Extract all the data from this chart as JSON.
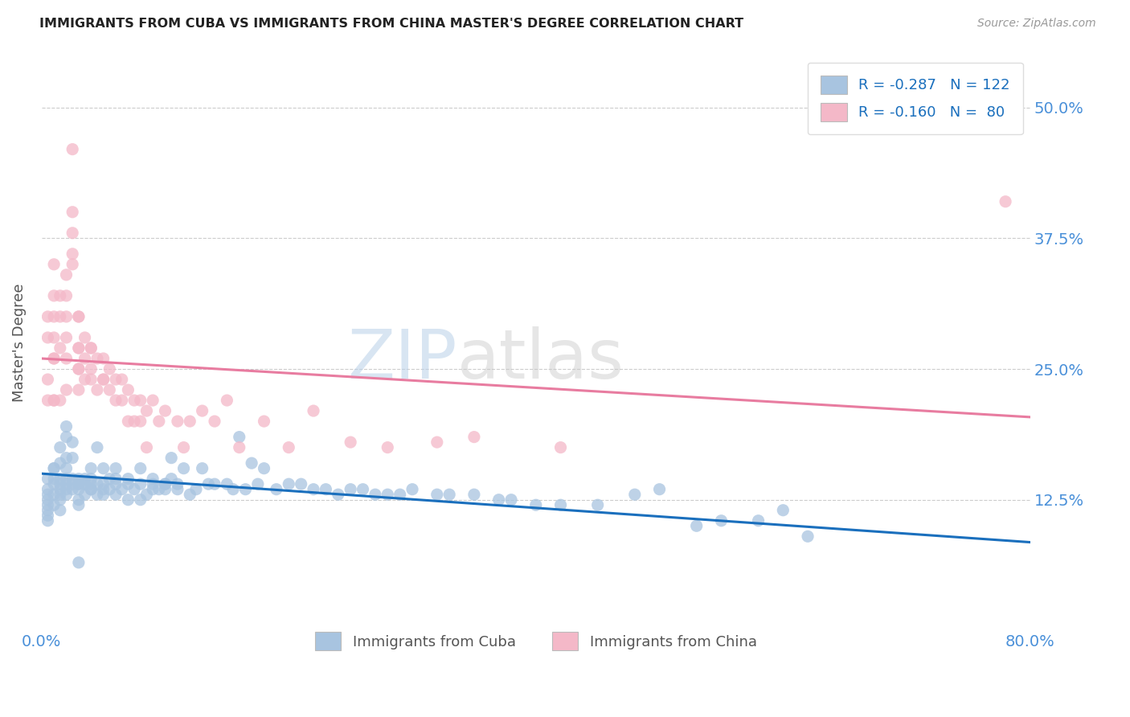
{
  "title": "IMMIGRANTS FROM CUBA VS IMMIGRANTS FROM CHINA MASTER'S DEGREE CORRELATION CHART",
  "source": "Source: ZipAtlas.com",
  "ylabel": "Master's Degree",
  "ytick_labels": [
    "12.5%",
    "25.0%",
    "37.5%",
    "50.0%"
  ],
  "ytick_values": [
    0.125,
    0.25,
    0.375,
    0.5
  ],
  "xlim": [
    0.0,
    0.8
  ],
  "ylim": [
    0.0,
    0.55
  ],
  "legend_label1": "Immigrants from Cuba",
  "legend_label2": "Immigrants from China",
  "legend_r1": "R = -0.287",
  "legend_n1": "N = 122",
  "legend_r2": "R = -0.160",
  "legend_n2": "N =  80",
  "watermark_zip": "ZIP",
  "watermark_atlas": "atlas",
  "title_color": "#222222",
  "source_color": "#999999",
  "tick_color": "#4a90d9",
  "grid_color": "#cccccc",
  "cuba_color": "#a8c4e0",
  "china_color": "#f4b8c8",
  "cuba_line_color": "#1a6fbd",
  "china_line_color": "#e87ca0",
  "cuba_intercept": 0.15,
  "cuba_slope": -0.082,
  "china_intercept": 0.26,
  "china_slope": -0.07,
  "cuba_points": [
    [
      0.005,
      0.135
    ],
    [
      0.005,
      0.125
    ],
    [
      0.005,
      0.115
    ],
    [
      0.005,
      0.105
    ],
    [
      0.005,
      0.145
    ],
    [
      0.005,
      0.13
    ],
    [
      0.005,
      0.12
    ],
    [
      0.005,
      0.11
    ],
    [
      0.01,
      0.145
    ],
    [
      0.01,
      0.155
    ],
    [
      0.01,
      0.13
    ],
    [
      0.01,
      0.12
    ],
    [
      0.01,
      0.14
    ],
    [
      0.01,
      0.155
    ],
    [
      0.015,
      0.125
    ],
    [
      0.015,
      0.135
    ],
    [
      0.015,
      0.175
    ],
    [
      0.015,
      0.145
    ],
    [
      0.015,
      0.13
    ],
    [
      0.015,
      0.14
    ],
    [
      0.015,
      0.16
    ],
    [
      0.015,
      0.115
    ],
    [
      0.02,
      0.185
    ],
    [
      0.02,
      0.135
    ],
    [
      0.02,
      0.145
    ],
    [
      0.02,
      0.165
    ],
    [
      0.02,
      0.195
    ],
    [
      0.02,
      0.14
    ],
    [
      0.02,
      0.13
    ],
    [
      0.02,
      0.155
    ],
    [
      0.025,
      0.18
    ],
    [
      0.025,
      0.14
    ],
    [
      0.025,
      0.145
    ],
    [
      0.025,
      0.135
    ],
    [
      0.025,
      0.165
    ],
    [
      0.03,
      0.14
    ],
    [
      0.03,
      0.125
    ],
    [
      0.03,
      0.14
    ],
    [
      0.03,
      0.135
    ],
    [
      0.03,
      0.145
    ],
    [
      0.03,
      0.12
    ],
    [
      0.035,
      0.14
    ],
    [
      0.035,
      0.13
    ],
    [
      0.035,
      0.14
    ],
    [
      0.035,
      0.145
    ],
    [
      0.04,
      0.135
    ],
    [
      0.04,
      0.145
    ],
    [
      0.04,
      0.155
    ],
    [
      0.04,
      0.135
    ],
    [
      0.04,
      0.14
    ],
    [
      0.045,
      0.13
    ],
    [
      0.045,
      0.175
    ],
    [
      0.045,
      0.14
    ],
    [
      0.05,
      0.135
    ],
    [
      0.05,
      0.14
    ],
    [
      0.05,
      0.13
    ],
    [
      0.05,
      0.155
    ],
    [
      0.055,
      0.145
    ],
    [
      0.055,
      0.135
    ],
    [
      0.06,
      0.13
    ],
    [
      0.06,
      0.14
    ],
    [
      0.06,
      0.145
    ],
    [
      0.06,
      0.155
    ],
    [
      0.065,
      0.135
    ],
    [
      0.07,
      0.14
    ],
    [
      0.07,
      0.125
    ],
    [
      0.07,
      0.145
    ],
    [
      0.075,
      0.135
    ],
    [
      0.08,
      0.14
    ],
    [
      0.08,
      0.125
    ],
    [
      0.08,
      0.155
    ],
    [
      0.085,
      0.13
    ],
    [
      0.09,
      0.14
    ],
    [
      0.09,
      0.145
    ],
    [
      0.09,
      0.135
    ],
    [
      0.095,
      0.135
    ],
    [
      0.1,
      0.14
    ],
    [
      0.1,
      0.135
    ],
    [
      0.1,
      0.14
    ],
    [
      0.105,
      0.145
    ],
    [
      0.105,
      0.165
    ],
    [
      0.11,
      0.14
    ],
    [
      0.11,
      0.135
    ],
    [
      0.115,
      0.155
    ],
    [
      0.12,
      0.13
    ],
    [
      0.125,
      0.135
    ],
    [
      0.13,
      0.155
    ],
    [
      0.135,
      0.14
    ],
    [
      0.14,
      0.14
    ],
    [
      0.15,
      0.14
    ],
    [
      0.155,
      0.135
    ],
    [
      0.16,
      0.185
    ],
    [
      0.165,
      0.135
    ],
    [
      0.17,
      0.16
    ],
    [
      0.175,
      0.14
    ],
    [
      0.18,
      0.155
    ],
    [
      0.19,
      0.135
    ],
    [
      0.2,
      0.14
    ],
    [
      0.21,
      0.14
    ],
    [
      0.22,
      0.135
    ],
    [
      0.23,
      0.135
    ],
    [
      0.24,
      0.13
    ],
    [
      0.25,
      0.135
    ],
    [
      0.26,
      0.135
    ],
    [
      0.27,
      0.13
    ],
    [
      0.28,
      0.13
    ],
    [
      0.29,
      0.13
    ],
    [
      0.3,
      0.135
    ],
    [
      0.32,
      0.13
    ],
    [
      0.33,
      0.13
    ],
    [
      0.35,
      0.13
    ],
    [
      0.37,
      0.125
    ],
    [
      0.38,
      0.125
    ],
    [
      0.4,
      0.12
    ],
    [
      0.42,
      0.12
    ],
    [
      0.45,
      0.12
    ],
    [
      0.48,
      0.13
    ],
    [
      0.5,
      0.135
    ],
    [
      0.53,
      0.1
    ],
    [
      0.55,
      0.105
    ],
    [
      0.58,
      0.105
    ],
    [
      0.6,
      0.115
    ],
    [
      0.62,
      0.09
    ],
    [
      0.03,
      0.065
    ]
  ],
  "china_points": [
    [
      0.005,
      0.24
    ],
    [
      0.005,
      0.22
    ],
    [
      0.005,
      0.28
    ],
    [
      0.005,
      0.3
    ],
    [
      0.01,
      0.26
    ],
    [
      0.01,
      0.32
    ],
    [
      0.01,
      0.22
    ],
    [
      0.01,
      0.3
    ],
    [
      0.01,
      0.26
    ],
    [
      0.01,
      0.28
    ],
    [
      0.01,
      0.35
    ],
    [
      0.01,
      0.22
    ],
    [
      0.015,
      0.3
    ],
    [
      0.015,
      0.32
    ],
    [
      0.015,
      0.27
    ],
    [
      0.015,
      0.22
    ],
    [
      0.02,
      0.3
    ],
    [
      0.02,
      0.26
    ],
    [
      0.02,
      0.34
    ],
    [
      0.02,
      0.23
    ],
    [
      0.02,
      0.28
    ],
    [
      0.02,
      0.32
    ],
    [
      0.025,
      0.36
    ],
    [
      0.025,
      0.46
    ],
    [
      0.025,
      0.38
    ],
    [
      0.025,
      0.4
    ],
    [
      0.025,
      0.35
    ],
    [
      0.03,
      0.3
    ],
    [
      0.03,
      0.27
    ],
    [
      0.03,
      0.25
    ],
    [
      0.03,
      0.3
    ],
    [
      0.03,
      0.27
    ],
    [
      0.03,
      0.25
    ],
    [
      0.03,
      0.23
    ],
    [
      0.035,
      0.28
    ],
    [
      0.035,
      0.26
    ],
    [
      0.035,
      0.24
    ],
    [
      0.04,
      0.27
    ],
    [
      0.04,
      0.25
    ],
    [
      0.04,
      0.27
    ],
    [
      0.04,
      0.24
    ],
    [
      0.045,
      0.26
    ],
    [
      0.045,
      0.23
    ],
    [
      0.05,
      0.24
    ],
    [
      0.05,
      0.26
    ],
    [
      0.05,
      0.24
    ],
    [
      0.055,
      0.25
    ],
    [
      0.055,
      0.23
    ],
    [
      0.06,
      0.24
    ],
    [
      0.06,
      0.22
    ],
    [
      0.065,
      0.24
    ],
    [
      0.065,
      0.22
    ],
    [
      0.07,
      0.2
    ],
    [
      0.07,
      0.23
    ],
    [
      0.075,
      0.22
    ],
    [
      0.075,
      0.2
    ],
    [
      0.08,
      0.22
    ],
    [
      0.08,
      0.2
    ],
    [
      0.085,
      0.21
    ],
    [
      0.085,
      0.175
    ],
    [
      0.09,
      0.22
    ],
    [
      0.095,
      0.2
    ],
    [
      0.1,
      0.21
    ],
    [
      0.11,
      0.2
    ],
    [
      0.115,
      0.175
    ],
    [
      0.12,
      0.2
    ],
    [
      0.13,
      0.21
    ],
    [
      0.14,
      0.2
    ],
    [
      0.15,
      0.22
    ],
    [
      0.16,
      0.175
    ],
    [
      0.18,
      0.2
    ],
    [
      0.2,
      0.175
    ],
    [
      0.22,
      0.21
    ],
    [
      0.25,
      0.18
    ],
    [
      0.28,
      0.175
    ],
    [
      0.32,
      0.18
    ],
    [
      0.35,
      0.185
    ],
    [
      0.42,
      0.175
    ],
    [
      0.78,
      0.41
    ]
  ]
}
